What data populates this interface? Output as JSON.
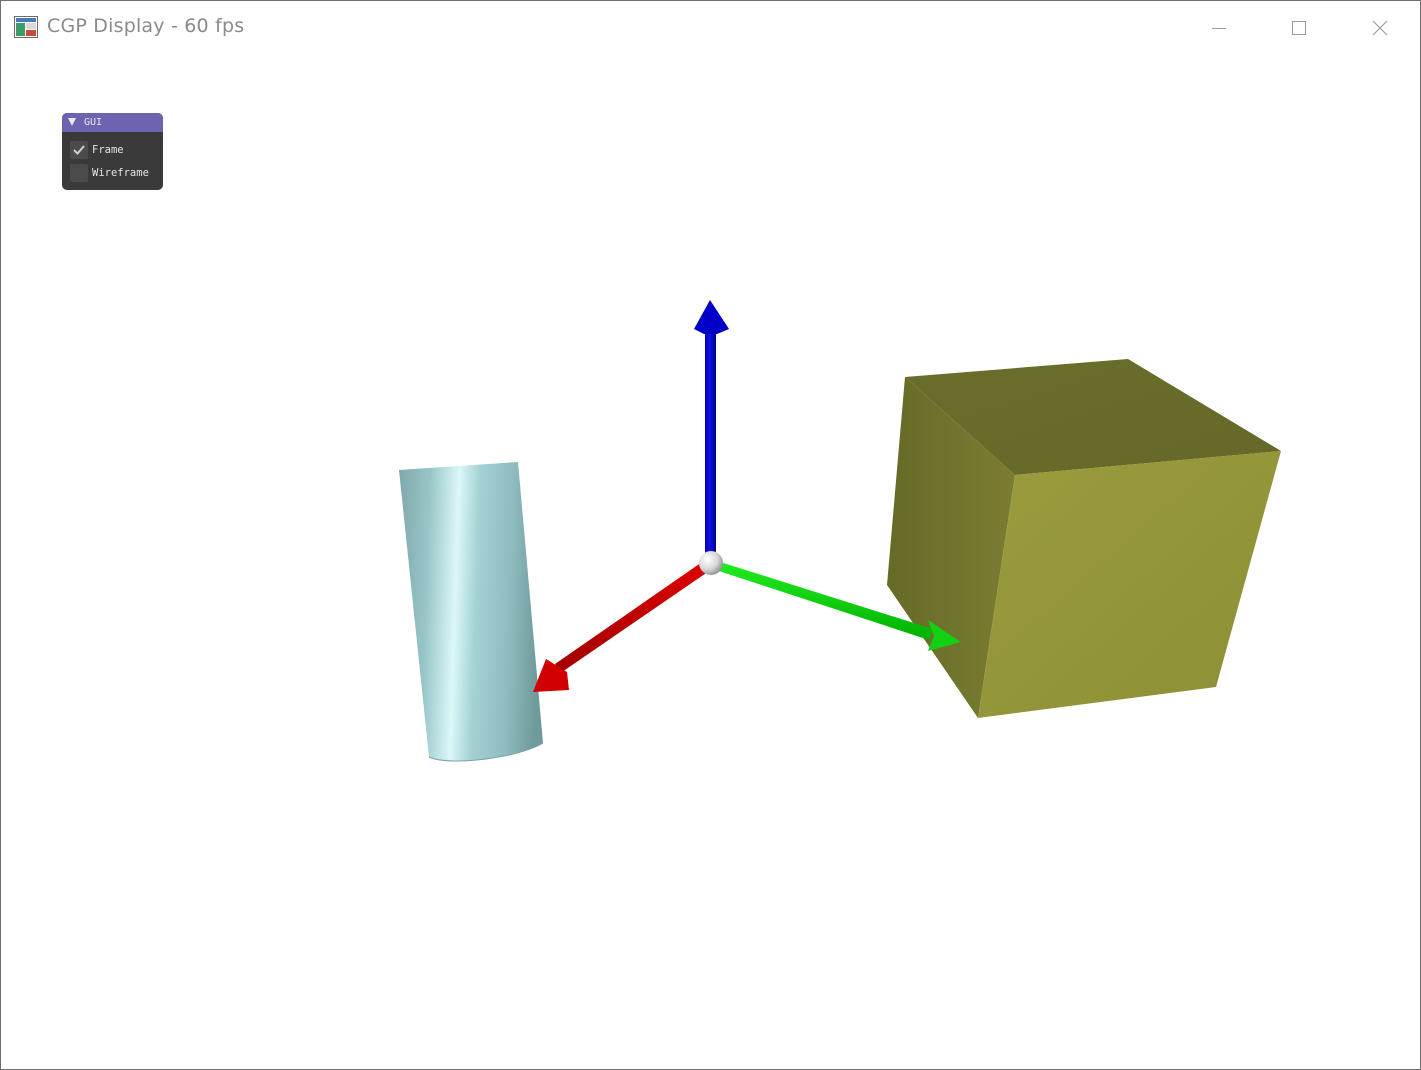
{
  "window": {
    "title": "CGP Display - 60 fps",
    "controls": [
      "minimize",
      "maximize",
      "close"
    ]
  },
  "gui": {
    "title": "GUI",
    "options": [
      {
        "label": "Frame",
        "checked": true
      },
      {
        "label": "Wireframe",
        "checked": false
      }
    ]
  },
  "scene": {
    "objects": [
      {
        "name": "cylinder",
        "color": "#9fcfd1"
      },
      {
        "name": "cube",
        "color": "#8f913a"
      },
      {
        "name": "frame-x-axis",
        "color": "#d40000"
      },
      {
        "name": "frame-y-axis",
        "color": "#00cc00"
      },
      {
        "name": "frame-z-axis",
        "color": "#0000cc"
      },
      {
        "name": "frame-origin-sphere",
        "color": "#e6e6e6"
      }
    ]
  }
}
